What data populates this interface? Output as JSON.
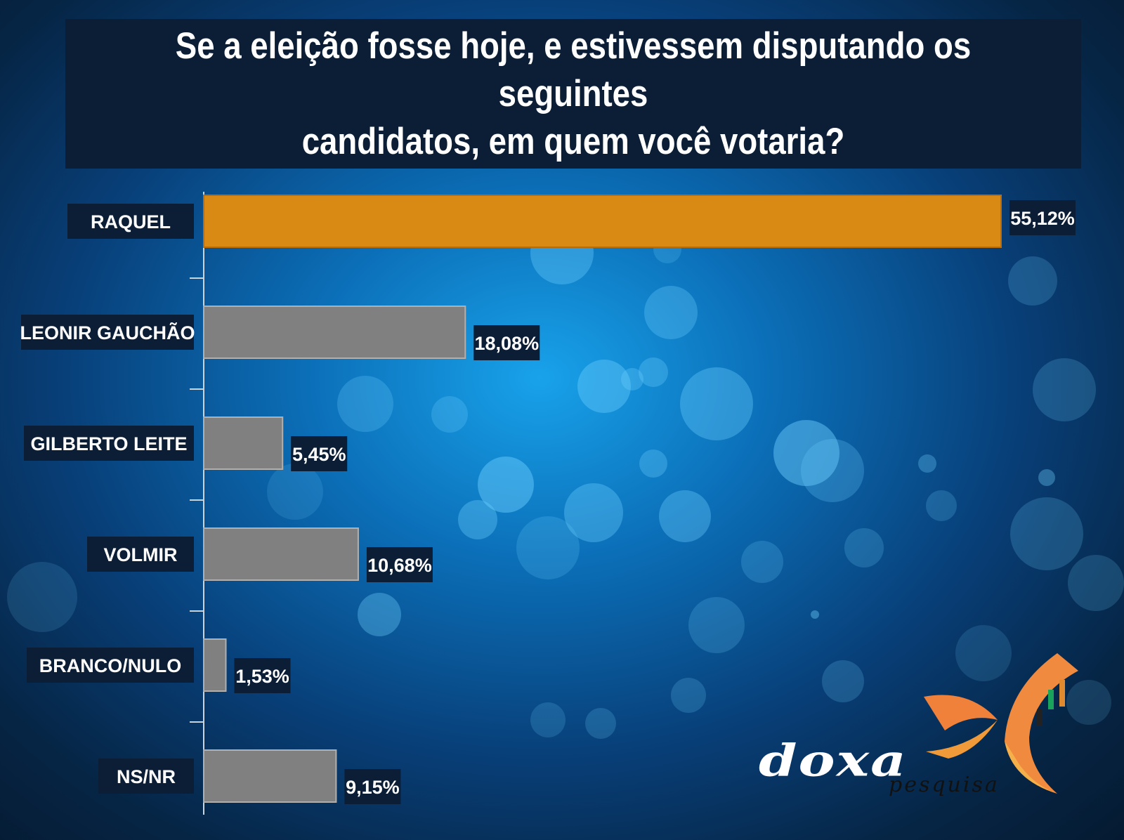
{
  "title": "Se a eleição fosse hoje, e estivessem disputando os seguintes\ncandidatos, em quem você votaria?",
  "chart_data": {
    "type": "bar",
    "orientation": "horizontal",
    "title": "Se a eleição fosse hoje, e estivessem disputando os seguintes candidatos, em quem você votaria?",
    "categories": [
      "RAQUEL",
      "LEONIR GAUCHÃO",
      "GILBERTO LEITE",
      "VOLMIR",
      "BRANCO/NULO",
      "NS/NR"
    ],
    "values": [
      55.12,
      18.08,
      5.45,
      10.68,
      1.53,
      9.15
    ],
    "value_labels": [
      "55,12%",
      "18,08%",
      "5,45%",
      "10,68%",
      "1,53%",
      "9,15%"
    ],
    "xlim": [
      0,
      55.12
    ],
    "grid": false,
    "legend": "none"
  },
  "colors": {
    "highlight_bar": "#d98a14",
    "default_bar": "#808080",
    "label_box": "#0b1e36",
    "label_text": "#ffffff"
  },
  "logo": {
    "word": "doxa",
    "sub": "pesquisa"
  }
}
